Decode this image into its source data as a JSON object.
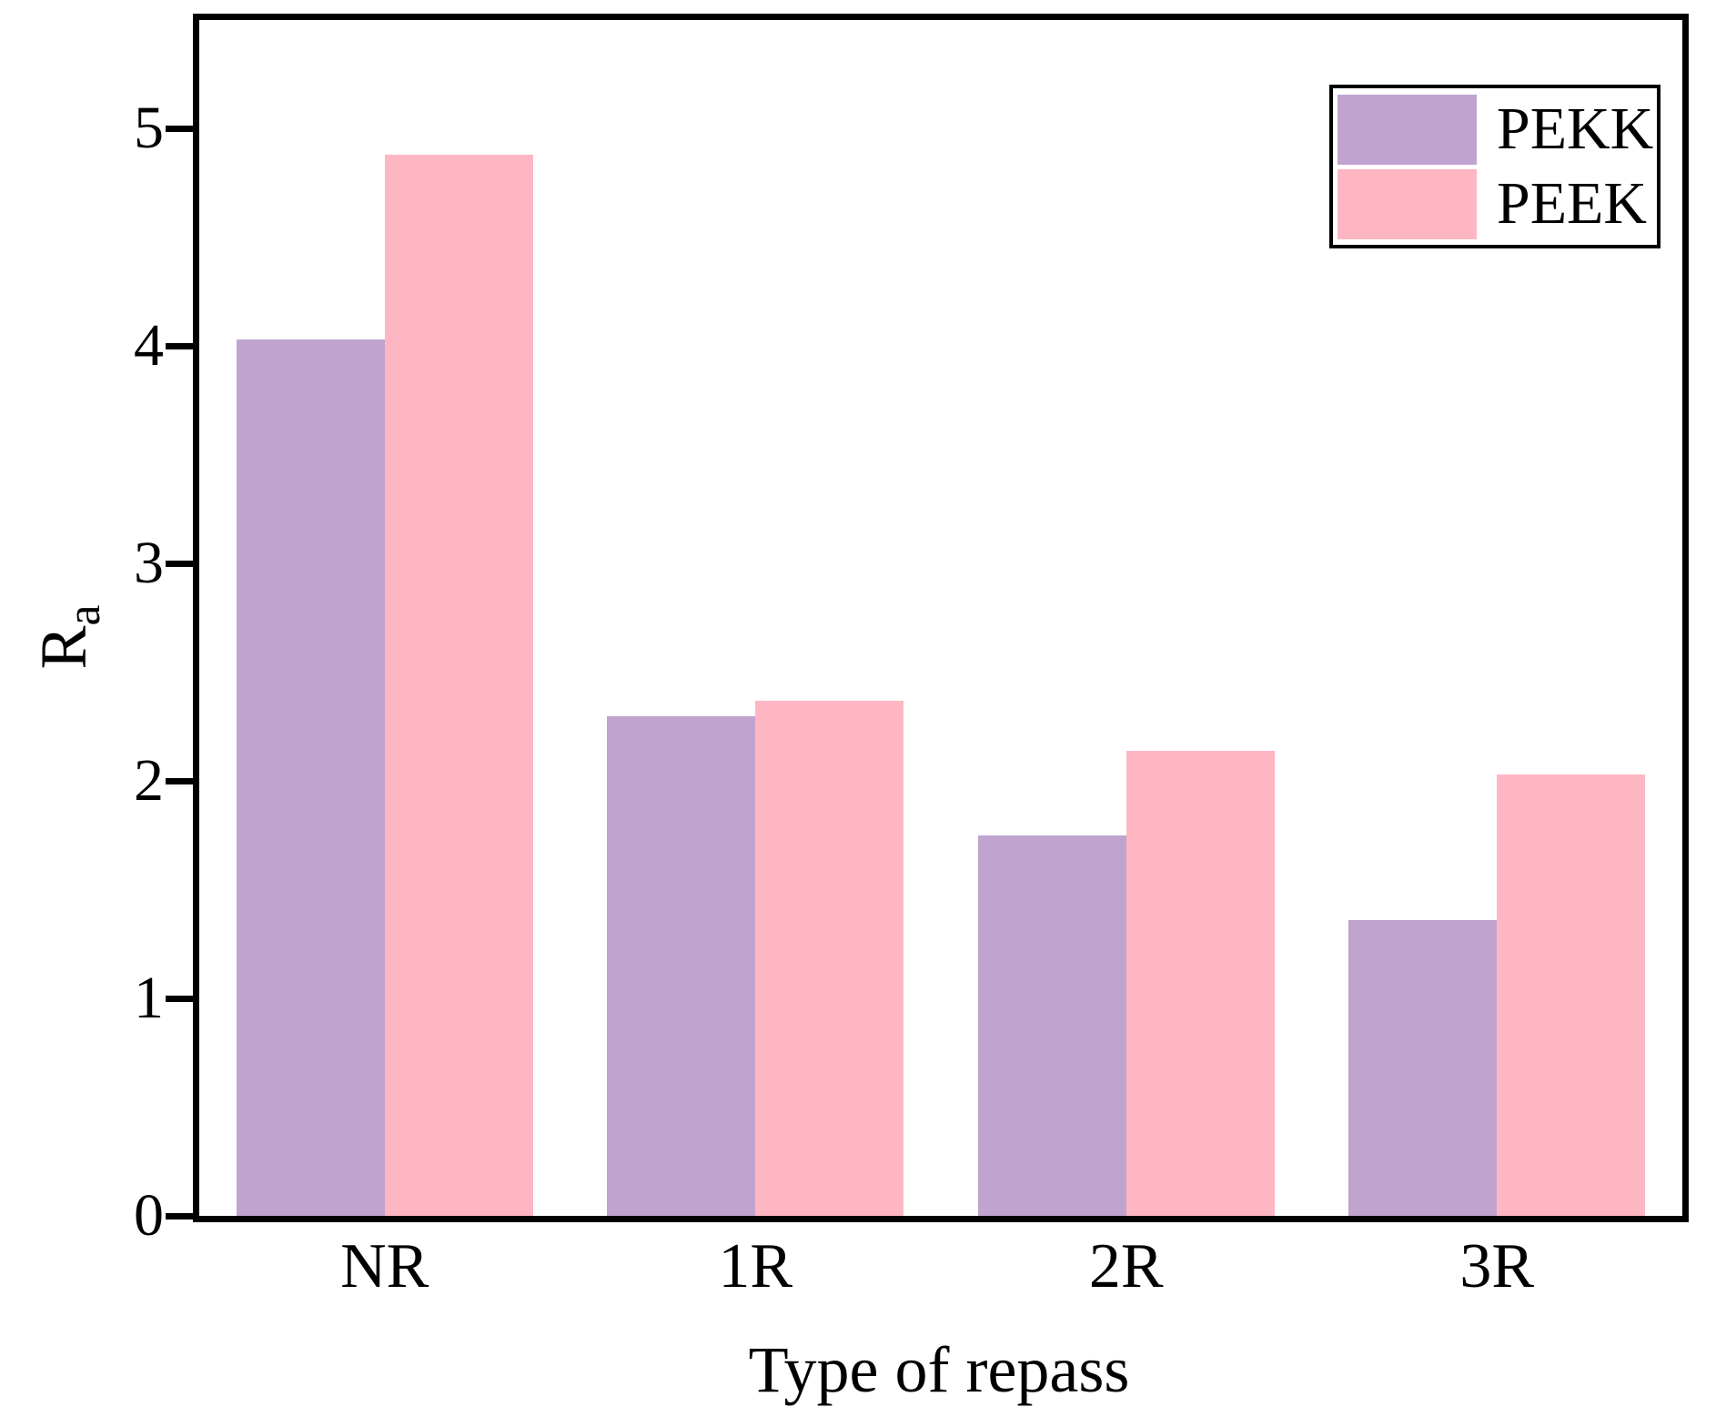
{
  "chart_data": {
    "type": "bar",
    "title": "",
    "xlabel": "Type of repass",
    "ylabel": "Ra",
    "ylabel_main": "R",
    "ylabel_sub": "a",
    "categories": [
      "NR",
      "1R",
      "2R",
      "3R"
    ],
    "series": [
      {
        "name": "PEKK",
        "color": "#C1A3D0",
        "values": [
          4.03,
          2.3,
          1.75,
          1.36
        ]
      },
      {
        "name": "PEEK",
        "color": "#FFB6C3",
        "values": [
          4.88,
          2.37,
          2.14,
          2.03
        ]
      }
    ],
    "ylim": [
      0,
      5.5
    ],
    "yticks": [
      0,
      1,
      2,
      3,
      4,
      5
    ],
    "grid": false,
    "legend_position": "top-right",
    "axis_color": "#000000",
    "background_color": "#ffffff"
  }
}
